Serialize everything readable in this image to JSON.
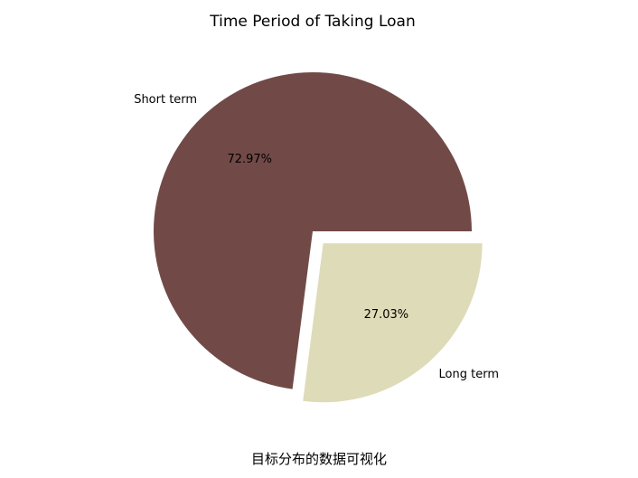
{
  "caption": "目标分布的数据可视化",
  "chart_data": {
    "type": "pie",
    "title": "Time Period of Taking Loan",
    "slices": [
      {
        "label": "Short term",
        "value": 72.97,
        "pct_label": "72.97%",
        "color": "#714a48",
        "explode": 0.0
      },
      {
        "label": "Long term",
        "value": 27.03,
        "pct_label": "27.03%",
        "color": "#dedbb8",
        "explode": 0.1
      }
    ],
    "start_angle_deg": 0,
    "counterclockwise": true
  }
}
